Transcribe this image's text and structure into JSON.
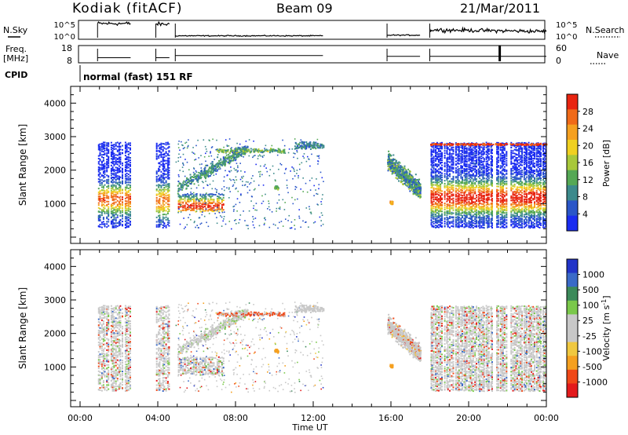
{
  "header": {
    "station": "Kodiak (fitACF)",
    "beam": "Beam 09",
    "date": "21/Mar/2011"
  },
  "top_panels": {
    "nsky_label": "N.Sky",
    "nsky_ticks": [
      "10^5",
      "10^0"
    ],
    "nsearch_label": "N.Search",
    "nsearch_ticks": [
      "10^5",
      "10^0"
    ],
    "freq_label_1": "Freq.",
    "freq_label_2": "[MHz]",
    "freq_ticks": [
      "18",
      "8"
    ],
    "nave_label": "Nave",
    "nave_ticks": [
      "60",
      "0"
    ],
    "cpid_label": "CPID",
    "cpid_value": "normal (fast) 151 RF"
  },
  "time_axis": {
    "label": "Time UT",
    "tick_labels": [
      "00:00",
      "04:00",
      "08:00",
      "12:00",
      "16:00",
      "20:00",
      "00:00"
    ]
  },
  "colors": {
    "power": [
      "#1a2cf0",
      "#2a56c8",
      "#3c8a8c",
      "#55a855",
      "#a8c83a",
      "#f0d020",
      "#f5a020",
      "#f06a18",
      "#e82410"
    ],
    "velocity": [
      "#e31a1c",
      "#f04818",
      "#f5a020",
      "#f0c840",
      "#c8c8c8",
      "#c8c8c8",
      "#7ac84a",
      "#3c8a5a",
      "#3a6ac8",
      "#2234c8"
    ]
  },
  "chart_data": [
    {
      "type": "heatmap",
      "title": "Power",
      "xlabel": "",
      "ylabel": "Slant Range [km]",
      "xlim_hours": [
        0,
        24
      ],
      "ylim_km": [
        0,
        4500
      ],
      "y_ticks": [
        1000,
        2000,
        3000,
        4000
      ],
      "colorbar": {
        "label": "Power [dB]",
        "ticks": [
          "4",
          "8",
          "12",
          "16",
          "20",
          "24",
          "28"
        ],
        "range": [
          0,
          32
        ]
      },
      "data_intervals_hours": [
        [
          0.9,
          2.6
        ],
        [
          3.9,
          4.6
        ],
        [
          4.9,
          12.5
        ],
        [
          15.8,
          24
        ]
      ],
      "approx_scatter_regions": [
        {
          "time_hours": [
            0.9,
            2.6
          ],
          "range_km": [
            300,
            2850
          ],
          "power_peak_db": 26,
          "peak_range_km": 1150
        },
        {
          "time_hours": [
            3.9,
            4.6
          ],
          "range_km": [
            300,
            2850
          ],
          "power_peak_db": 24,
          "peak_range_km": 1100
        },
        {
          "time_hours": [
            5.0,
            7.5
          ],
          "range_km": [
            800,
            1300
          ],
          "power_peak_db": 28,
          "peak_range_km": 950
        },
        {
          "time_hours": [
            5.0,
            8.5
          ],
          "range_km": [
            1600,
            2700
          ],
          "power_peak_db": 10,
          "peak_range_km": 2200
        },
        {
          "time_hours": [
            15.8,
            17.5
          ],
          "range_km": [
            900,
            2600
          ],
          "power_peak_db": 14,
          "peak_range_km": 1400
        },
        {
          "time_hours": [
            18.0,
            24.0
          ],
          "range_km": [
            300,
            2850
          ],
          "power_peak_db": 30,
          "peak_range_km": 1200
        }
      ]
    },
    {
      "type": "heatmap",
      "title": "Velocity",
      "xlabel": "Time UT",
      "ylabel": "Slant Range [km]",
      "xlim_hours": [
        0,
        24
      ],
      "ylim_km": [
        0,
        4500
      ],
      "y_ticks": [
        1000,
        2000,
        3000,
        4000
      ],
      "colorbar": {
        "label": "Velocity [m s^-1]",
        "ticks": [
          "1000",
          "500",
          "100",
          "25",
          "-25",
          "-100",
          "-500",
          "-1000"
        ],
        "range": [
          -1250,
          1250
        ]
      },
      "dominant_value_m_s": 0,
      "note_visible": ""
    },
    {
      "type": "line",
      "title": "N.Sky / N.Search",
      "series": [
        {
          "name": "N.Sky",
          "x_hours": [
            0.9,
            2.6,
            3.9,
            4.6,
            4.9,
            12.5,
            15.8,
            17.5,
            18.0,
            24.0
          ],
          "values_log10": [
            4.5,
            4.5,
            4.3,
            4.3,
            0.6,
            0.6,
            0.8,
            0.8,
            2.5,
            2.0
          ]
        }
      ]
    },
    {
      "type": "line",
      "title": "Freq / Nave",
      "series": [
        {
          "name": "Freq.",
          "x_hours": [
            0.9,
            2.6,
            3.9,
            4.6,
            4.9,
            12.5,
            15.8,
            17.5,
            18.0,
            24.0
          ],
          "values": [
            10.5,
            10.5,
            10.5,
            10.5,
            12.0,
            12.0,
            11.5,
            11.5,
            11.5,
            11.5
          ]
        }
      ]
    }
  ]
}
